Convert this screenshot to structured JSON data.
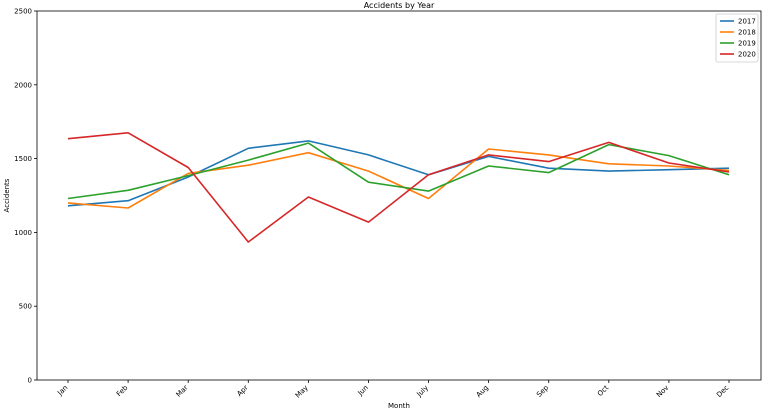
{
  "chart_data": {
    "type": "line",
    "title": "Accidents by Year",
    "xlabel": "Month",
    "ylabel": "Accidents",
    "categories": [
      "Jan",
      "Feb",
      "Mar",
      "Apr",
      "May",
      "Jun",
      "July",
      "Aug",
      "Sep",
      "Oct",
      "Nov",
      "Dec"
    ],
    "ylim": [
      0,
      2500
    ],
    "yticks": [
      0,
      500,
      1000,
      1500,
      2000,
      2500
    ],
    "grid": false,
    "legend_position": "top-right",
    "series": [
      {
        "name": "2017",
        "color": "#1f77b4",
        "values": [
          1180,
          1215,
          1375,
          1570,
          1620,
          1525,
          1390,
          1515,
          1435,
          1415,
          1425,
          1435
        ]
      },
      {
        "name": "2018",
        "color": "#ff7f0e",
        "values": [
          1200,
          1165,
          1400,
          1455,
          1540,
          1415,
          1230,
          1565,
          1525,
          1465,
          1450,
          1420
        ]
      },
      {
        "name": "2019",
        "color": "#2ca02c",
        "values": [
          1230,
          1285,
          1385,
          1490,
          1605,
          1340,
          1280,
          1450,
          1405,
          1595,
          1520,
          1390
        ]
      },
      {
        "name": "2020",
        "color": "#d62728",
        "values": [
          1635,
          1675,
          1440,
          935,
          1240,
          1070,
          1390,
          1525,
          1480,
          1610,
          1470,
          1410
        ]
      }
    ]
  }
}
